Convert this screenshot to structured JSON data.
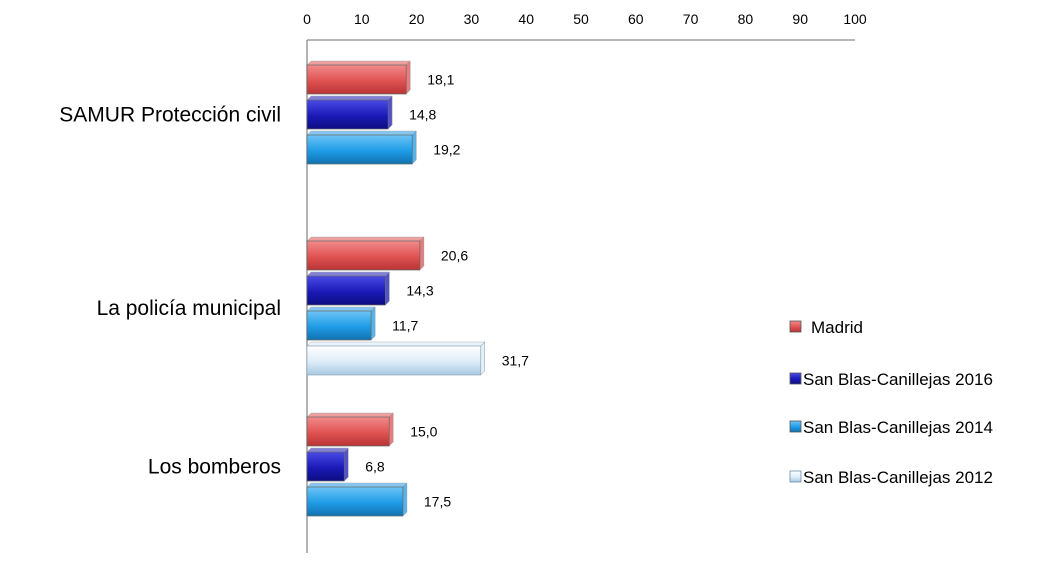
{
  "chart_data": {
    "type": "bar",
    "orientation": "horizontal",
    "title": "",
    "xlabel": "",
    "ylabel": "",
    "xlim": [
      0,
      100
    ],
    "x_ticks": [
      0,
      10,
      20,
      30,
      40,
      50,
      60,
      70,
      80,
      90,
      100
    ],
    "x_axis_position": "top",
    "grid": false,
    "legend_position": "right",
    "categories": [
      "SAMUR Protección civil",
      "La policía municipal",
      "Los bomberos"
    ],
    "series": [
      {
        "name": "Madrid",
        "color": "#e05252",
        "values": [
          18.1,
          20.6,
          15.0
        ],
        "labels": [
          "18,1",
          "20,6",
          "15,0"
        ]
      },
      {
        "name": "San Blas-Canillejas 2016",
        "color": "#1a1ab8",
        "values": [
          14.8,
          14.3,
          6.8
        ],
        "labels": [
          "14,8",
          "14,3",
          "6,8"
        ]
      },
      {
        "name": "San Blas-Canillejas 2014",
        "color": "#1e9be6",
        "values": [
          19.2,
          11.7,
          17.5
        ],
        "labels": [
          "19,2",
          "11,7",
          "17,5"
        ]
      },
      {
        "name": "San Blas-Canillejas 2012",
        "color": "#d9ebf8",
        "values": [
          null,
          31.7,
          null
        ],
        "labels": [
          "",
          "31,7",
          ""
        ]
      }
    ]
  }
}
